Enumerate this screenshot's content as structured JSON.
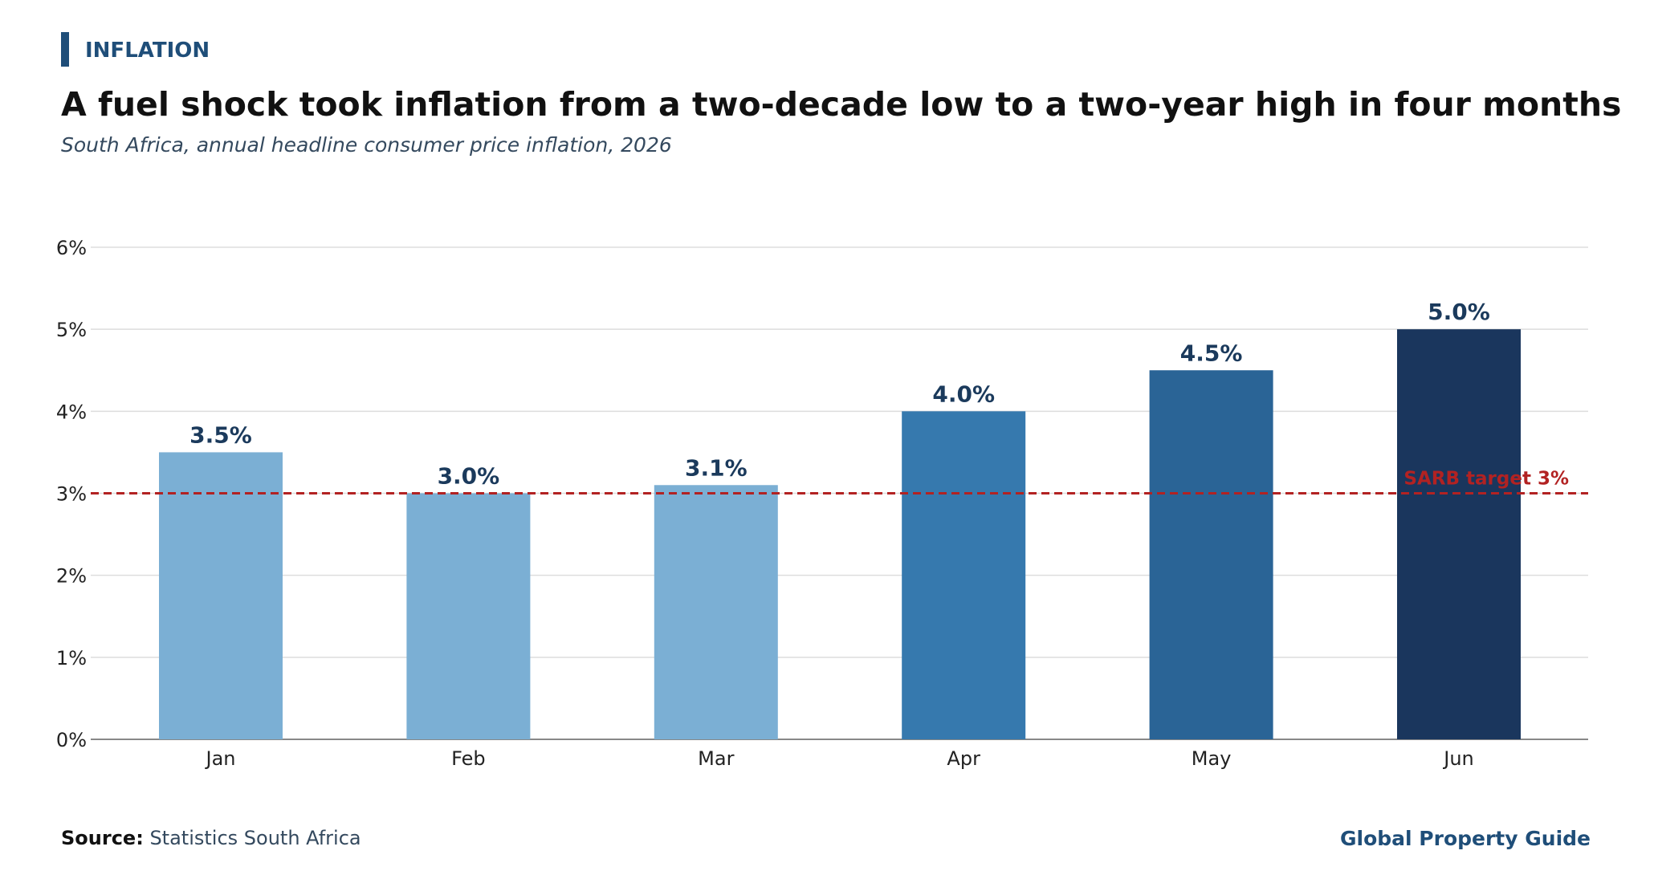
{
  "header": {
    "kicker": "INFLATION",
    "title": "A fuel shock took inflation from a two-decade low to a two-year high in four months",
    "subtitle": "South Africa, annual headline consumer price inflation, 2026"
  },
  "footer": {
    "source_label": "Source:",
    "source_text": "Statistics South Africa",
    "brand": "Global Property Guide"
  },
  "colors": {
    "accent": "#1f4e79",
    "target_line": "#b22222",
    "data_label": "#1b3a5c"
  },
  "chart_data": {
    "type": "bar",
    "categories": [
      "Jan",
      "Feb",
      "Mar",
      "Apr",
      "May",
      "Jun"
    ],
    "values": [
      3.5,
      3.0,
      3.1,
      4.0,
      4.5,
      5.0
    ],
    "value_labels": [
      "3.5%",
      "3.0%",
      "3.1%",
      "4.0%",
      "4.5%",
      "5.0%"
    ],
    "bar_colors": [
      "#7bafd4",
      "#7bafd4",
      "#7bafd4",
      "#3679ae",
      "#2a6496",
      "#1a365d"
    ],
    "ylim": [
      0,
      6
    ],
    "y_ticks": [
      0,
      1,
      2,
      3,
      4,
      5,
      6
    ],
    "y_tick_labels": [
      "0%",
      "1%",
      "2%",
      "3%",
      "4%",
      "5%",
      "6%"
    ],
    "grid": true,
    "reference_line": {
      "value": 3,
      "label": "SARB target 3%"
    },
    "title": "A fuel shock took inflation from a two-decade low to a two-year high in four months",
    "xlabel": "",
    "ylabel": ""
  }
}
